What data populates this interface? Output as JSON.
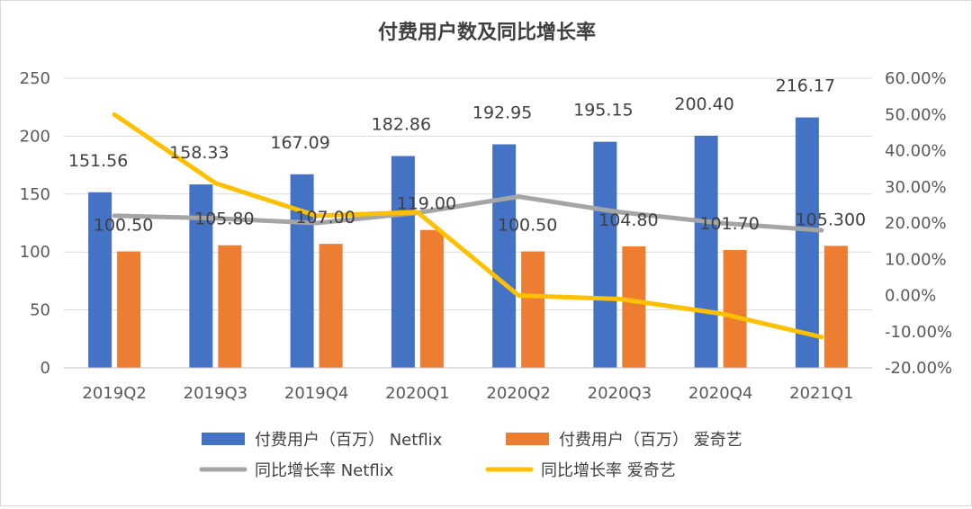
{
  "chart_data": {
    "type": "bar",
    "title": "付费用户数及同比增长率",
    "categories": [
      "2019Q2",
      "2019Q3",
      "2019Q4",
      "2020Q1",
      "2020Q2",
      "2020Q3",
      "2020Q4",
      "2021Q1"
    ],
    "y_left": {
      "ylim": [
        0,
        250
      ],
      "ticks": [
        "0",
        "50",
        "100",
        "150",
        "200",
        "250"
      ]
    },
    "y_right": {
      "ylim": [
        -20,
        60
      ],
      "ticks": [
        "-20.00%",
        "-10.00%",
        "0.00%",
        "10.00%",
        "20.00%",
        "30.00%",
        "40.00%",
        "50.00%",
        "60.00%"
      ]
    },
    "series": [
      {
        "name": "付费用户（百万） Netflix",
        "type": "bar",
        "axis": "left",
        "color": "#4472c4",
        "values": [
          151.56,
          158.33,
          167.09,
          182.86,
          192.95,
          195.15,
          200.4,
          216.17
        ],
        "labels": [
          "151.56",
          "158.33",
          "167.09",
          "182.86",
          "192.95",
          "195.15",
          "200.40",
          "216.17"
        ]
      },
      {
        "name": "付费用户（百万） 爱奇艺",
        "type": "bar",
        "axis": "left",
        "color": "#ed7d31",
        "values": [
          100.5,
          105.8,
          107.0,
          119.0,
          100.5,
          104.8,
          101.7,
          105.3
        ],
        "labels": [
          "100.50",
          "105.80",
          "107.00",
          "119.00",
          "100.50",
          "104.80",
          "101.70",
          "105.300"
        ]
      },
      {
        "name": "同比增长率 Netflix",
        "type": "line",
        "axis": "right",
        "color": "#a5a5a5",
        "values": [
          22.0,
          21.3,
          20.0,
          22.8,
          27.3,
          23.0,
          20.0,
          18.0
        ]
      },
      {
        "name": "同比增长率 爱奇艺",
        "type": "line",
        "axis": "right",
        "color": "#ffc000",
        "values": [
          50.0,
          31.0,
          22.0,
          23.0,
          0.0,
          -1.0,
          -5.0,
          -11.5
        ]
      }
    ],
    "grid": true,
    "legend_position": "bottom"
  }
}
